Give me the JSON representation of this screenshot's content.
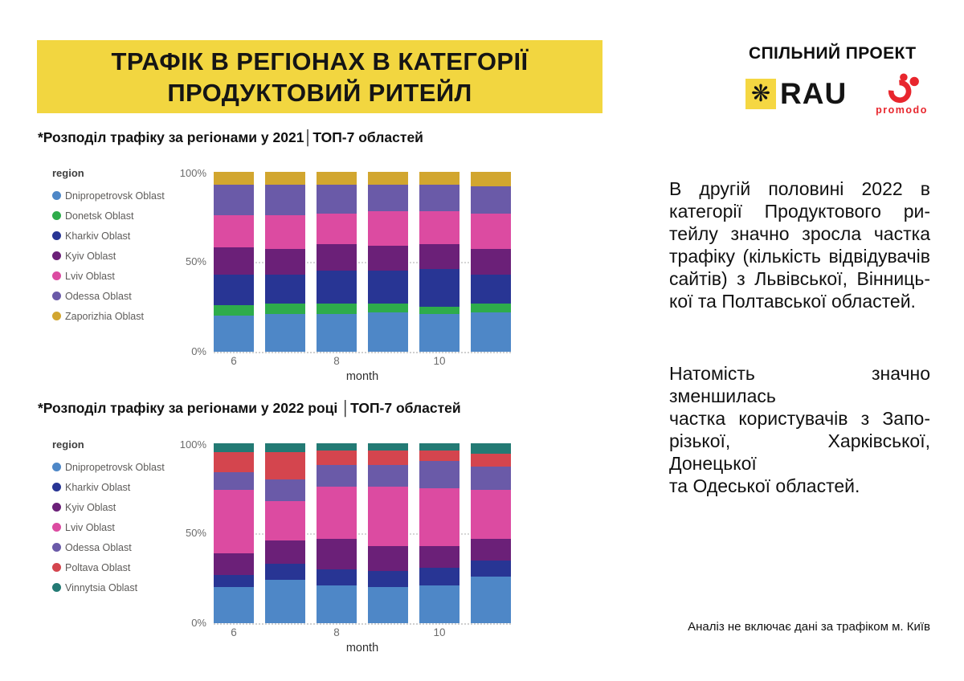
{
  "header": {
    "title_line1": "ТРАФІК В РЕГІОНАХ В КАТЕГОРІЇ",
    "title_line2": "ПРОДУКТОВИЙ РИТЕЙЛ",
    "title_bg": "#F2D640",
    "partner_label": "СПІЛЬНИЙ ПРОЕКТ",
    "rau_logo_text": "RAU",
    "rau_logo_bg": "#F5D742",
    "rau_star_glyph": "❋",
    "promodo_logo_text": "promodo",
    "promodo_color": "#E8262D"
  },
  "chart_data": [
    {
      "type": "bar",
      "stacked": true,
      "title": "*Розподіл трафіку за регіонами у 2021│ТОП-7 областей",
      "legend_title": "region",
      "legend_position": "left",
      "xlabel": "month",
      "x": [
        6,
        7,
        8,
        9,
        10,
        11
      ],
      "x_ticks": [
        {
          "label": "6",
          "bar_index": 0
        },
        {
          "label": "8",
          "bar_index": 2
        },
        {
          "label": "10",
          "bar_index": 4
        }
      ],
      "ylim": [
        0,
        100
      ],
      "y_tick_labels": [
        "100%",
        "50%",
        "0%"
      ],
      "grid": "dotted",
      "series": [
        {
          "name": "Dnipropetrovsk Oblast",
          "color": "#4E87C7",
          "values": [
            20,
            21,
            21,
            22,
            21,
            22
          ]
        },
        {
          "name": "Donetsk Oblast",
          "color": "#2EAC4B",
          "values": [
            6,
            6,
            6,
            5,
            4,
            5
          ]
        },
        {
          "name": "Kharkiv Oblast",
          "color": "#283594",
          "values": [
            17,
            16,
            18,
            18,
            21,
            16
          ]
        },
        {
          "name": "Kyiv Oblast",
          "color": "#6B2078",
          "values": [
            15,
            14,
            15,
            14,
            14,
            14
          ]
        },
        {
          "name": "Lviv Oblast",
          "color": "#DC4BA1",
          "values": [
            18,
            19,
            17,
            19,
            18,
            20
          ]
        },
        {
          "name": "Odessa Oblast",
          "color": "#6A5AA8",
          "values": [
            17,
            17,
            16,
            15,
            15,
            15
          ]
        },
        {
          "name": "Zaporizhia Oblast",
          "color": "#D2A62F",
          "values": [
            7,
            7,
            7,
            7,
            7,
            8
          ]
        }
      ]
    },
    {
      "type": "bar",
      "stacked": true,
      "title": "*Розподіл трафіку за регіонами у 2022 році │ТОП-7 областей",
      "legend_title": "region",
      "legend_position": "left",
      "xlabel": "month",
      "x": [
        6,
        7,
        8,
        9,
        10,
        11
      ],
      "x_ticks": [
        {
          "label": "6",
          "bar_index": 0
        },
        {
          "label": "8",
          "bar_index": 2
        },
        {
          "label": "10",
          "bar_index": 4
        }
      ],
      "ylim": [
        0,
        100
      ],
      "y_tick_labels": [
        "100%",
        "50%",
        "0%"
      ],
      "grid": "dotted",
      "series": [
        {
          "name": "Dnipropetrovsk Oblast",
          "color": "#4E87C7",
          "values": [
            20,
            24,
            21,
            20,
            21,
            26
          ]
        },
        {
          "name": "Kharkiv Oblast",
          "color": "#283594",
          "values": [
            7,
            9,
            9,
            9,
            10,
            9
          ]
        },
        {
          "name": "Kyiv Oblast",
          "color": "#6B2078",
          "values": [
            12,
            13,
            17,
            14,
            12,
            12
          ]
        },
        {
          "name": "Lviv Oblast",
          "color": "#DC4BA1",
          "values": [
            35,
            22,
            29,
            33,
            32,
            27
          ]
        },
        {
          "name": "Odessa Oblast",
          "color": "#6A5AA8",
          "values": [
            10,
            12,
            12,
            12,
            15,
            13
          ]
        },
        {
          "name": "Poltava Oblast",
          "color": "#D4454E",
          "values": [
            11,
            15,
            8,
            8,
            6,
            7
          ]
        },
        {
          "name": "Vinnytsia Oblast",
          "color": "#237A74",
          "values": [
            5,
            5,
            4,
            4,
            4,
            6
          ]
        }
      ]
    }
  ],
  "sidebar": {
    "paragraphs": [
      {
        "name": "analysis-paragraph-1",
        "lines": [
          "В другій половині 2022 в",
          "категорії Продуктового ри-",
          "тейлу значно зросла частка",
          "трафіку (кількість відвідувачів",
          "сайтів) з Львівської, Вінниць-",
          "кої та Полтавської областей."
        ]
      },
      {
        "name": "analysis-paragraph-2",
        "lines": [
          "Натомість значно зменшилась",
          "частка користувачів з Запо-",
          "різької, Харківської, Донецької",
          "та Одеської областей."
        ]
      }
    ]
  },
  "footnote": "Аналіз не включає дані за трафіком м. Київ"
}
